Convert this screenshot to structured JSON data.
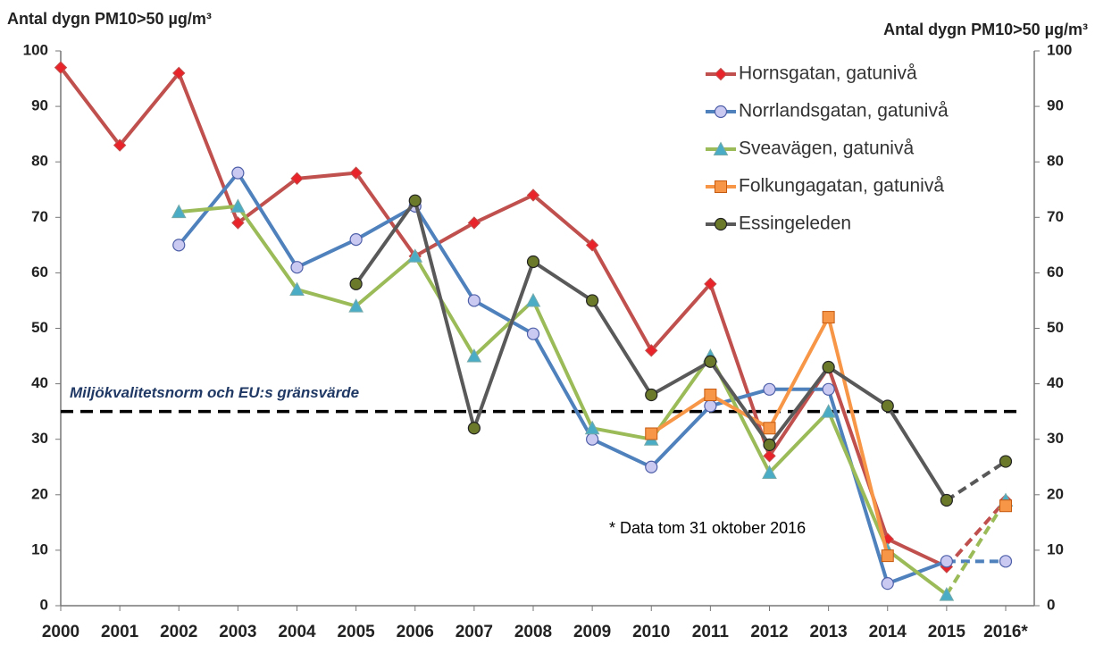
{
  "chart_data": {
    "type": "line",
    "y_label": "Antal dygn PM10>50 µg/m³",
    "y2_label": "Antal dygn PM10>50 µg/m³",
    "categories": [
      "2000",
      "2001",
      "2002",
      "2003",
      "2004",
      "2005",
      "2006",
      "2007",
      "2008",
      "2009",
      "2010",
      "2011",
      "2012",
      "2013",
      "2014",
      "2015",
      "2016*"
    ],
    "series": [
      {
        "name": "Hornsgatan, gatunivå",
        "color": "#c0504d",
        "marker": "diamond",
        "marker_color": "#e8242a",
        "values": [
          97,
          83,
          96,
          69,
          77,
          78,
          63,
          69,
          74,
          65,
          46,
          58,
          27,
          43,
          12,
          7,
          19
        ]
      },
      {
        "name": "Norrlandsgatan, gatunivå",
        "color": "#4f81bd",
        "marker": "circle",
        "marker_color": "#c9c9f2",
        "values": [
          null,
          null,
          65,
          78,
          61,
          66,
          72,
          55,
          49,
          30,
          25,
          36,
          39,
          39,
          4,
          8,
          8
        ]
      },
      {
        "name": "Sveavägen, gatunivå",
        "color": "#9bbb59",
        "marker": "triangle",
        "marker_color": "#4bacc6",
        "values": [
          null,
          null,
          71,
          72,
          57,
          54,
          63,
          45,
          55,
          32,
          30,
          45,
          24,
          35,
          10,
          2,
          19
        ]
      },
      {
        "name": "Folkungagatan, gatunivå",
        "color": "#f79646",
        "marker": "square",
        "marker_color": "#f79646",
        "values": [
          null,
          null,
          null,
          null,
          null,
          null,
          null,
          null,
          null,
          null,
          31,
          38,
          32,
          52,
          9,
          null,
          18
        ]
      },
      {
        "name": "Essingeleden",
        "color": "#595959",
        "marker": "circle",
        "marker_color": "#6b7a2a",
        "values": [
          null,
          null,
          null,
          null,
          null,
          58,
          73,
          32,
          62,
          55,
          38,
          44,
          29,
          43,
          36,
          19,
          26
        ]
      }
    ],
    "partial_last": true,
    "reference_line": {
      "value": 35,
      "label": "Miljökvalitetsnorm och EU:s gränsvärde"
    },
    "annotation": "* Data tom 31 oktober 2016",
    "ylim": [
      0,
      100
    ],
    "yticks": [
      0,
      10,
      20,
      30,
      40,
      50,
      60,
      70,
      80,
      90,
      100
    ],
    "y2lim": [
      0,
      100
    ],
    "y2ticks": [
      0,
      10,
      20,
      30,
      40,
      50,
      60,
      70,
      80,
      90,
      100
    ],
    "legend": "upper right"
  }
}
